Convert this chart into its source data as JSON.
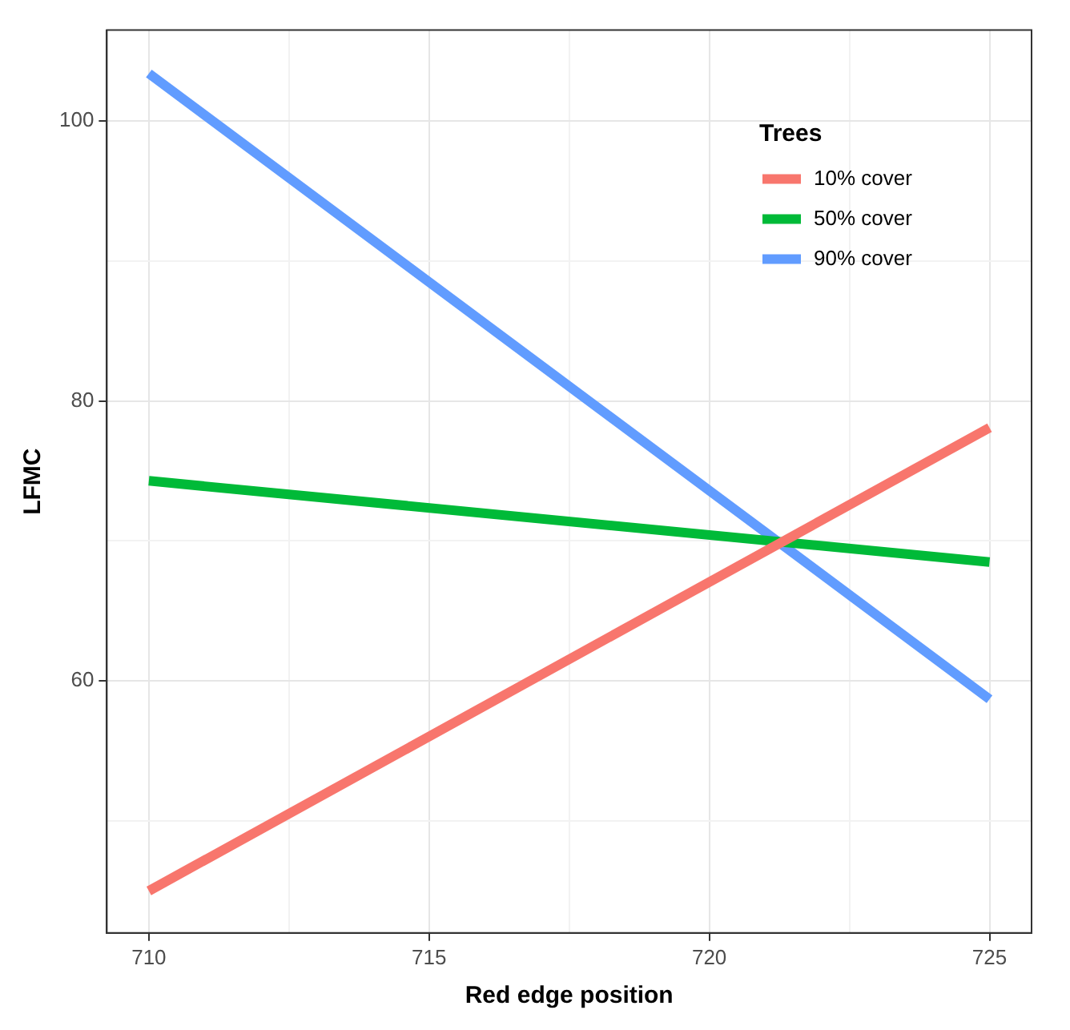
{
  "chart_data": {
    "type": "line",
    "xlabel": "Red edge position",
    "ylabel": "LFMC",
    "legend_title": "Trees",
    "legend": "top right",
    "grid": true,
    "marker": "none",
    "line_style": "solid",
    "x": [
      710,
      725
    ],
    "xlim": [
      709.25,
      725.75
    ],
    "ylim": [
      42,
      106.5
    ],
    "xticks": [
      710,
      {
        "value": 712.5,
        "label": null
      },
      715,
      {
        "value": 717.5,
        "label": null
      },
      720,
      {
        "value": 722.5,
        "label": null
      },
      725
    ],
    "yticks": [
      {
        "value": 50,
        "label": null
      },
      60,
      {
        "value": 70,
        "label": null
      },
      80,
      {
        "value": 90,
        "label": null
      },
      100
    ],
    "series": [
      {
        "name": "10% cover",
        "color": "#f8766d",
        "values": [
          45,
          78.1
        ]
      },
      {
        "name": "50% cover",
        "color": "#00ba38",
        "values": [
          74.3,
          68.5
        ]
      },
      {
        "name": "90% cover",
        "color": "#619cff",
        "values": [
          103.4,
          58.7
        ]
      }
    ]
  }
}
